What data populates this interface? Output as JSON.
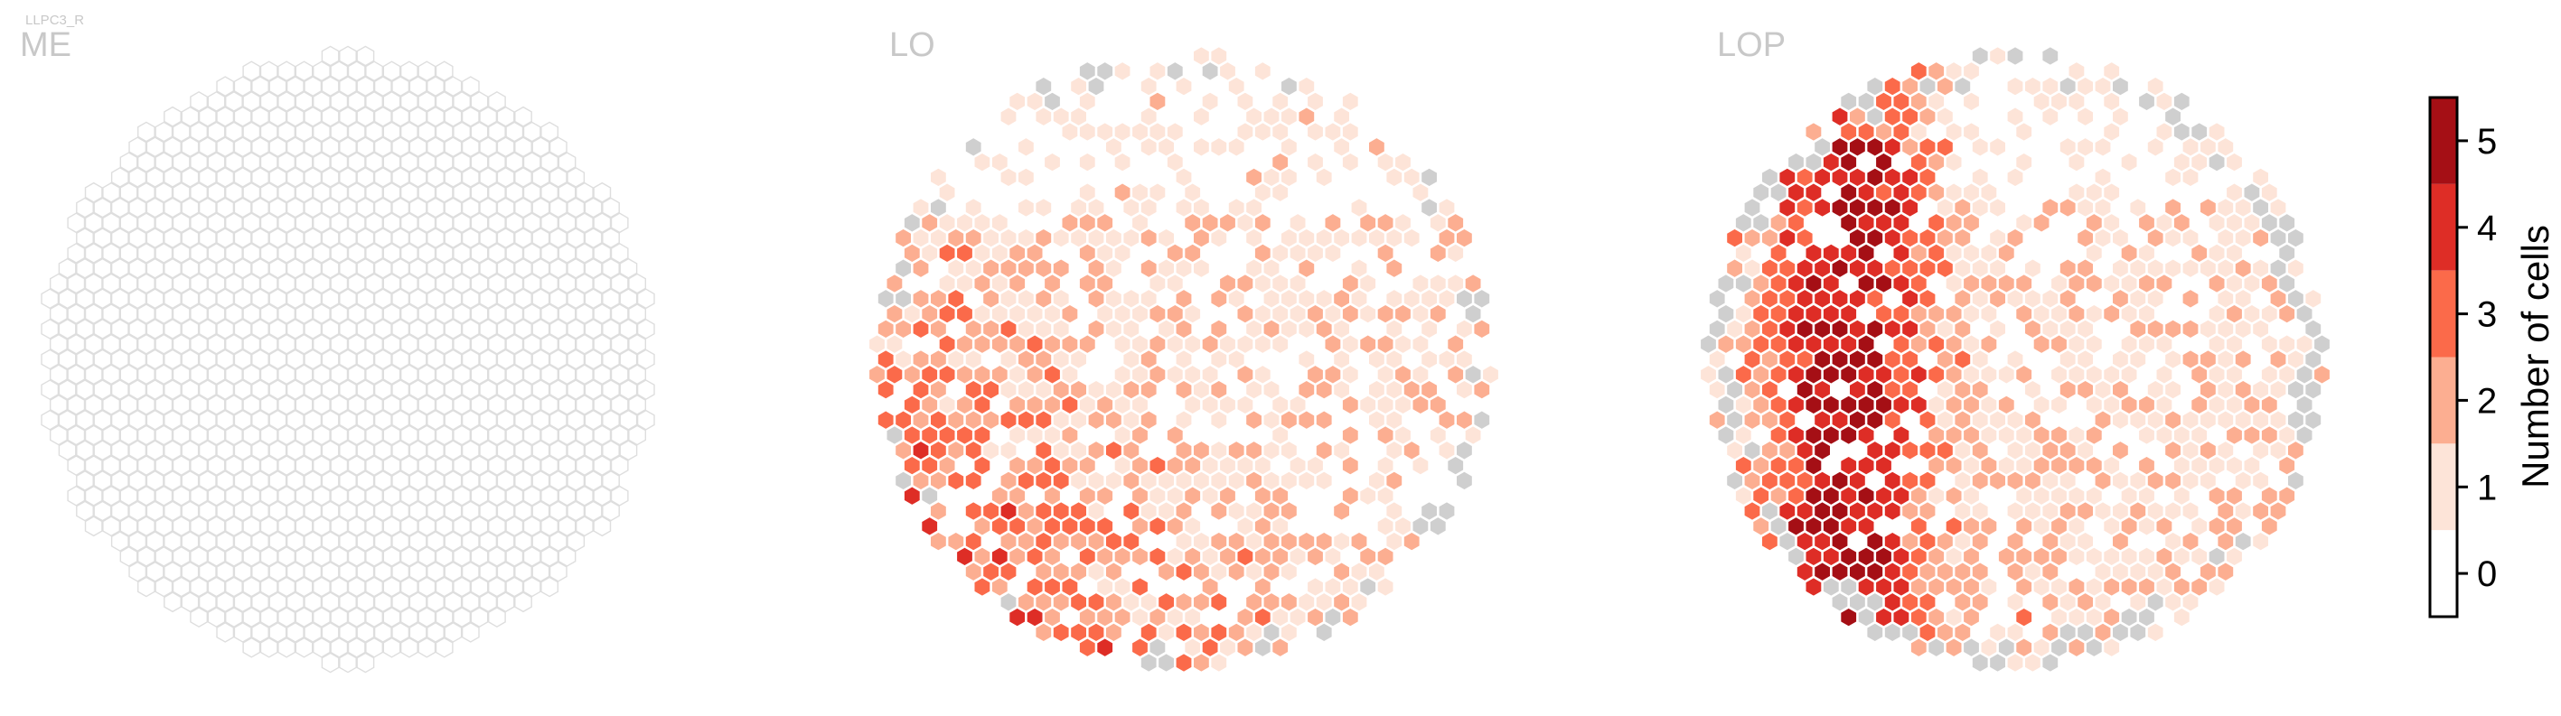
{
  "cell_type_label": "LLPC3_R",
  "chart_data": [
    {
      "type": "heatmap",
      "layout": "hexagonal",
      "title": "ME",
      "value_description": "all hexagons empty (value 0)",
      "values_summary": {
        "min": 0,
        "max": 0
      }
    },
    {
      "type": "heatmap",
      "layout": "hexagonal",
      "title": "LO",
      "values_summary": {
        "min": 0,
        "max": 5,
        "missing_color": "#cfcfcf",
        "dense_region": "lower-left quadrant"
      }
    },
    {
      "type": "heatmap",
      "layout": "hexagonal",
      "title": "LOP",
      "values_summary": {
        "min": 0,
        "max": 5,
        "missing_color": "#cfcfcf",
        "dense_region": "left-center vertical band"
      }
    }
  ],
  "colorbar": {
    "label": "Number of cells",
    "ticks": [
      0,
      1,
      2,
      3,
      4,
      5
    ],
    "colors": [
      "#ffffff",
      "#fde4d8",
      "#fcae91",
      "#fb6a4a",
      "#de2d26",
      "#a50f15"
    ],
    "missing_color": "#cfcfcf"
  }
}
